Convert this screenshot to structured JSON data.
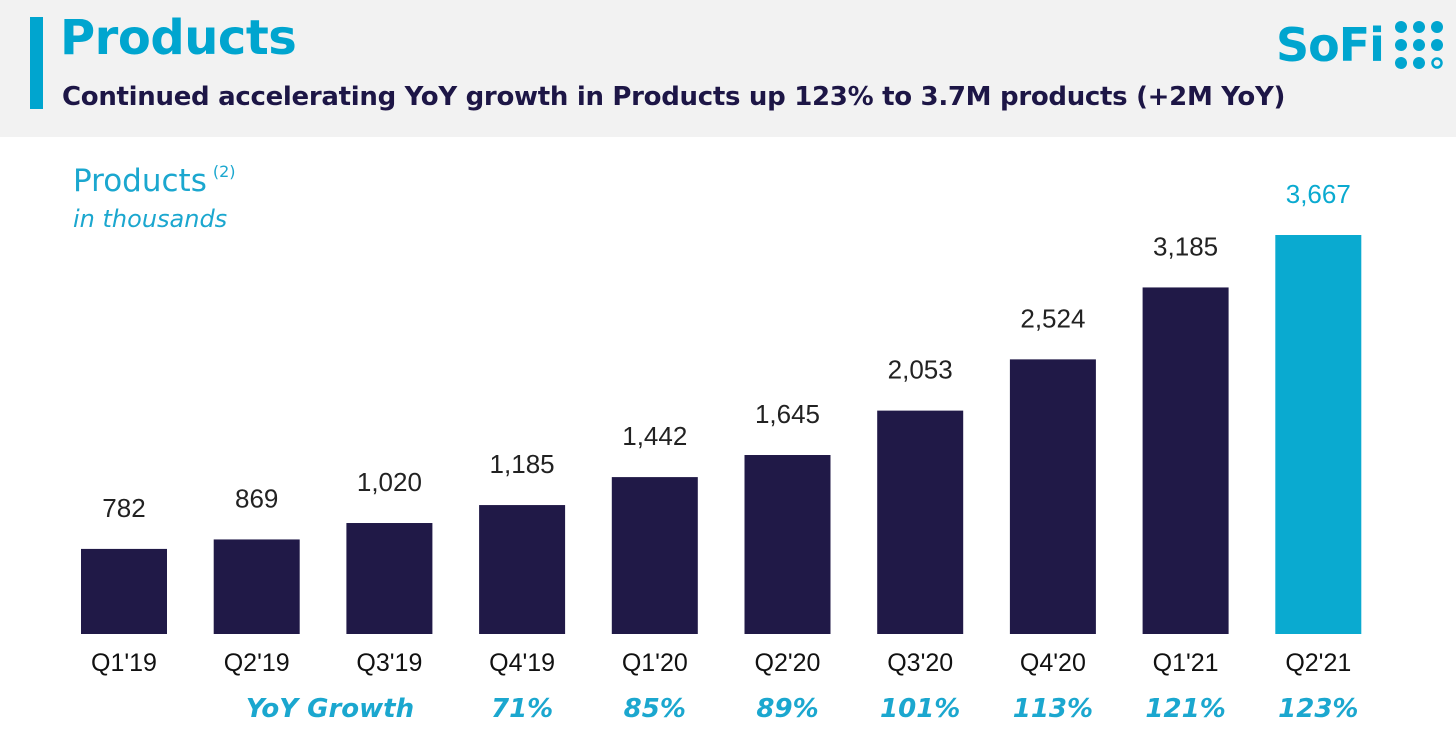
{
  "header": {
    "title": "Products",
    "subtitle": "Continued accelerating YoY growth in Products up 123% to 3.7M products (+2M YoY)",
    "logo_text": "SoFi"
  },
  "chart_label": {
    "title": "Products",
    "footnote": "(2)",
    "unit": "in thousands"
  },
  "colors": {
    "accent": "#00a5cf",
    "bar_default": "#201947",
    "bar_highlight": "#0aaad0",
    "text_dark": "#1d1646"
  },
  "yoy": {
    "label": "YoY Growth",
    "values": [
      "71%",
      "85%",
      "89%",
      "101%",
      "113%",
      "121%",
      "123%"
    ]
  },
  "chart_data": {
    "type": "bar",
    "categories": [
      "Q1'19",
      "Q2'19",
      "Q3'19",
      "Q4'19",
      "Q1'20",
      "Q2'20",
      "Q3'20",
      "Q4'20",
      "Q1'21",
      "Q2'21"
    ],
    "values": [
      782,
      869,
      1020,
      1185,
      1442,
      1645,
      2053,
      2524,
      3185,
      3667
    ],
    "value_labels": [
      "782",
      "869",
      "1,020",
      "1,185",
      "1,442",
      "1,645",
      "2,053",
      "2,524",
      "3,185",
      "3,667"
    ],
    "highlight_index": 9,
    "title": "Products",
    "ylabel": "in thousands",
    "grid": false,
    "legend": "none"
  }
}
